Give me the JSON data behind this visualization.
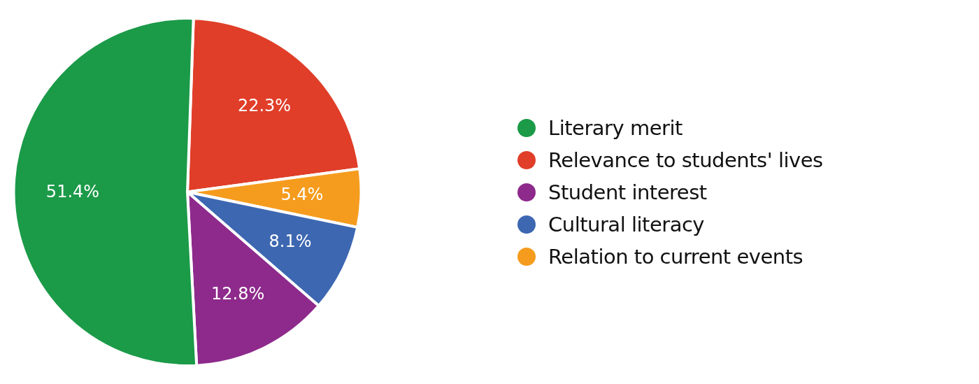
{
  "chart_data": {
    "type": "pie",
    "categories": [
      "Relevance to students' lives",
      "Relation to current events",
      "Cultural literacy",
      "Student interest",
      "Literary merit"
    ],
    "values": [
      22.3,
      5.4,
      8.1,
      12.8,
      51.4
    ],
    "colors": [
      "#e03e29",
      "#f59c1e",
      "#3d67b1",
      "#8e2a8c",
      "#1b9a48"
    ],
    "value_labels": [
      "22.3%",
      "5.4%",
      "8.1%",
      "12.8%",
      "51.4%"
    ],
    "legend": "right"
  }
}
